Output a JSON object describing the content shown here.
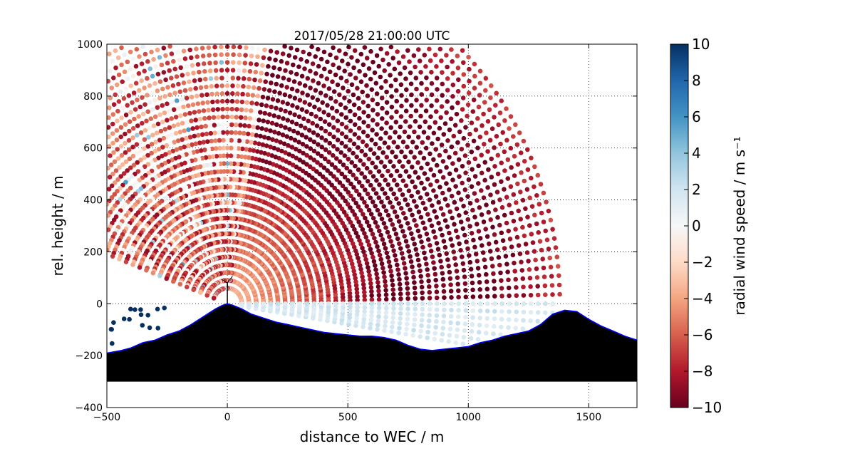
{
  "chart_data": {
    "type": "scatter",
    "title": "2017/05/28 21:00:00 UTC",
    "xlabel": "distance to WEC / m",
    "ylabel": "rel. height / m",
    "xlim": [
      -500,
      1700
    ],
    "ylim": [
      -400,
      1000
    ],
    "x_ticks": [
      -500,
      0,
      500,
      1000,
      1500
    ],
    "x_tick_labels": [
      "−500",
      "0",
      "500",
      "1000",
      "1500"
    ],
    "y_ticks": [
      -400,
      -200,
      0,
      200,
      400,
      600,
      800,
      1000
    ],
    "y_tick_labels": [
      "−400",
      "−200",
      "0",
      "200",
      "400",
      "600",
      "800",
      "1000"
    ],
    "grid": true,
    "grid_style": "dotted",
    "scan": {
      "origin": [
        0,
        0
      ],
      "max_range_m": 1400,
      "elevation_min_deg": 1.5,
      "elevation_max_deg": 160,
      "range_step_m": 30,
      "elevation_step_deg": 1.5
    },
    "terrain_profile": {
      "x": [
        -500,
        -440,
        -400,
        -350,
        -300,
        -250,
        -200,
        -150,
        -100,
        -50,
        -20,
        0,
        20,
        60,
        100,
        150,
        200,
        250,
        300,
        350,
        400,
        450,
        500,
        550,
        600,
        650,
        700,
        750,
        800,
        850,
        900,
        950,
        1000,
        1050,
        1100,
        1150,
        1200,
        1250,
        1300,
        1350,
        1400,
        1450,
        1500,
        1550,
        1600,
        1650,
        1700
      ],
      "y": [
        -190,
        -180,
        -170,
        -150,
        -140,
        -120,
        -105,
        -80,
        -50,
        -20,
        -6,
        0,
        -5,
        -20,
        -40,
        -55,
        -70,
        -80,
        -90,
        -100,
        -110,
        -115,
        -120,
        -125,
        -125,
        -130,
        -140,
        -160,
        -175,
        -180,
        -175,
        -170,
        -165,
        -150,
        -140,
        -125,
        -115,
        -105,
        -80,
        -40,
        -25,
        -30,
        -60,
        -85,
        -105,
        -125,
        -140
      ],
      "base": -300,
      "fill": "#000000",
      "line": "#0000ff"
    },
    "wec": {
      "x": 0,
      "y": 0,
      "hub_height_m": 80,
      "rotor_radius_m": 40,
      "color": "#000000"
    },
    "colorbar": {
      "label": "radial wind speed / m s⁻¹",
      "min": -10,
      "max": 10,
      "ticks": [
        -10,
        -8,
        -6,
        -4,
        -2,
        0,
        2,
        4,
        6,
        8,
        10
      ],
      "tick_labels": [
        "−10",
        "−8",
        "−6",
        "−4",
        "−2",
        "0",
        "2",
        "4",
        "6",
        "8",
        "10"
      ],
      "colormap": "RdBu",
      "colors": [
        "#67001f",
        "#b2182b",
        "#d6604d",
        "#f4a582",
        "#fddbc7",
        "#f7f7f7",
        "#d1e5f0",
        "#92c5de",
        "#4393c3",
        "#2166ac",
        "#053061"
      ]
    }
  }
}
